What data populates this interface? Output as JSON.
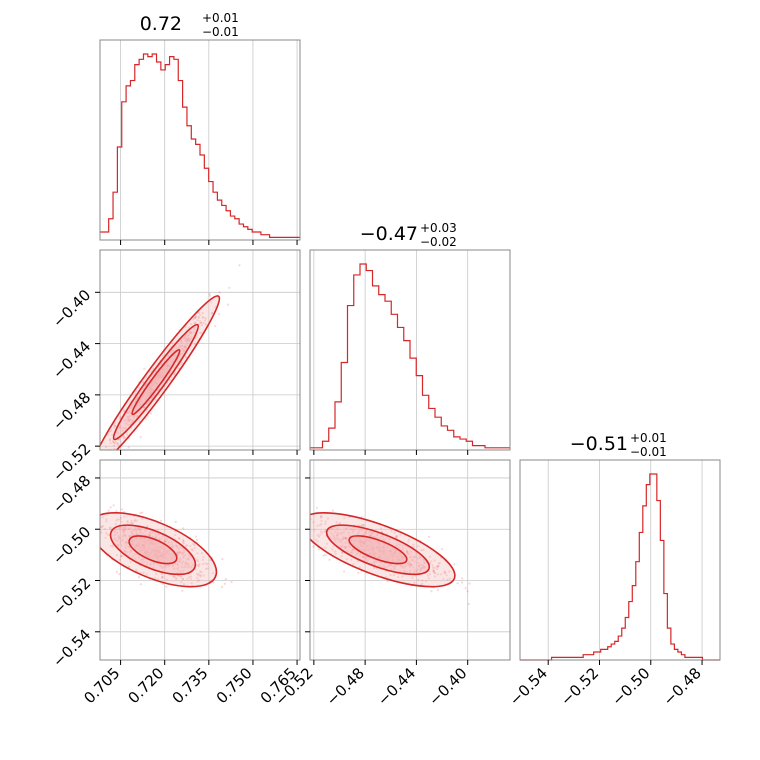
{
  "colors": {
    "accent": "#d62728",
    "accent_fill": "#f4b6b7",
    "grid": "#c8c8c8",
    "frame": "#888888"
  },
  "chart_data": {
    "type": "corner",
    "parameters": [
      {
        "title_main": "0.72",
        "title_plus": "+0.01",
        "title_minus": "−0.01",
        "range": [
          0.698,
          0.766
        ],
        "ticks": [
          0.705,
          0.72,
          0.735,
          0.75,
          0.765
        ],
        "tick_labels": [
          "0.705",
          "0.720",
          "0.735",
          "0.750",
          "0.765"
        ]
      },
      {
        "title_main": "−0.47",
        "title_plus": "+0.03",
        "title_minus": "−0.02",
        "range": [
          -0.523,
          -0.367
        ],
        "ticks": [
          -0.52,
          -0.48,
          -0.44,
          -0.4
        ],
        "tick_labels": [
          "−0.52",
          "−0.48",
          "−0.44",
          "−0.40"
        ]
      },
      {
        "title_main": "−0.51",
        "title_plus": "+0.01",
        "title_minus": "−0.01",
        "range": [
          -0.551,
          -0.473
        ],
        "ticks": [
          -0.54,
          -0.52,
          -0.5,
          -0.48
        ],
        "tick_labels": [
          "−0.54",
          "−0.52",
          "−0.50",
          "−0.48"
        ]
      }
    ],
    "histograms": [
      {
        "param": 0,
        "bins": [
          0.698,
          0.766
        ],
        "counts": [
          3,
          3,
          8,
          18,
          35,
          52,
          58,
          60,
          66,
          68,
          70,
          69,
          70,
          67,
          64,
          66,
          69,
          68,
          60,
          50,
          43,
          38,
          36,
          32,
          27,
          22,
          18,
          15,
          13,
          11,
          9,
          8,
          6,
          5,
          4,
          3,
          3,
          2,
          2,
          1,
          1,
          1,
          1,
          1,
          1,
          1
        ]
      },
      {
        "param": 1,
        "bins": [
          -0.523,
          -0.367
        ],
        "counts": [
          1,
          1,
          4,
          10,
          22,
          40,
          66,
          80,
          85,
          82,
          75,
          71,
          68,
          62,
          56,
          50,
          42,
          34,
          25,
          19,
          15,
          11,
          9,
          6,
          5,
          4,
          2,
          2,
          1,
          1,
          1,
          1
        ]
      },
      {
        "param": 2,
        "bins": [
          -0.551,
          -0.473
        ],
        "counts": [
          0,
          0,
          0,
          0,
          0,
          0,
          0,
          0,
          0,
          1,
          1,
          1,
          1,
          1,
          1,
          1,
          1,
          1,
          2,
          2,
          2,
          3,
          3,
          4,
          4,
          5,
          6,
          7,
          9,
          12,
          16,
          22,
          28,
          37,
          48,
          58,
          66,
          70,
          70,
          60,
          45,
          25,
          12,
          6,
          4,
          3,
          2,
          1,
          1,
          1,
          1,
          1,
          0,
          0,
          0,
          0,
          0
        ]
      }
    ],
    "scatter_panels": [
      {
        "x_param": 0,
        "y_param": 1,
        "center": [
          0.717,
          -0.47
        ],
        "spread_x": 0.009,
        "spread_y": 0.028,
        "correlation": 0.97
      },
      {
        "x_param": 0,
        "y_param": 2,
        "center": [
          0.716,
          -0.508
        ],
        "spread_x": 0.009,
        "spread_y": 0.006,
        "correlation": -0.6
      },
      {
        "x_param": 1,
        "y_param": 2,
        "center": [
          -0.47,
          -0.508
        ],
        "spread_x": 0.025,
        "spread_y": 0.006,
        "correlation": -0.7
      }
    ],
    "grid": true
  }
}
